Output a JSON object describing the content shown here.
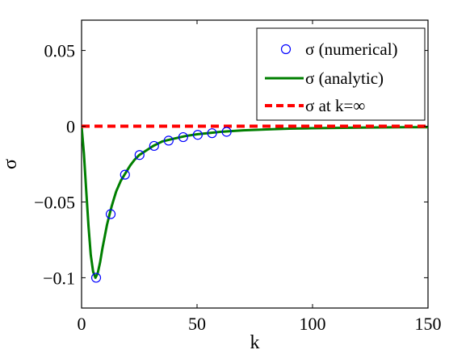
{
  "chart_data": {
    "type": "line",
    "title": "",
    "xlabel": "k",
    "ylabel": "σ",
    "xlim": [
      0,
      150
    ],
    "ylim": [
      -0.12,
      0.07
    ],
    "x_ticks": [
      0,
      50,
      100,
      150
    ],
    "x_tick_labels": [
      "0",
      "50",
      "100",
      "150"
    ],
    "y_ticks": [
      0.05,
      0,
      -0.05,
      -0.1
    ],
    "y_tick_labels": [
      "0.05",
      "0",
      "−0.05",
      "−0.1"
    ],
    "grid": false,
    "legend_position": "top-right",
    "series": [
      {
        "name": "σ (numerical)",
        "kind": "markers",
        "color": "#0000ff",
        "x": [
          6.3,
          12.6,
          18.8,
          25.1,
          31.4,
          37.7,
          44,
          50.3,
          56.5,
          62.8
        ],
        "y": [
          -0.1,
          -0.058,
          -0.032,
          -0.019,
          -0.013,
          -0.0095,
          -0.0072,
          -0.0057,
          -0.0046,
          -0.0037
        ]
      },
      {
        "name": "σ (analytic)",
        "kind": "line",
        "color": "#007f00",
        "x": [
          0,
          1,
          2,
          3,
          4,
          5,
          6,
          7,
          8,
          9,
          10,
          11,
          12,
          13,
          14,
          15,
          17,
          19,
          21,
          23,
          25,
          28,
          31,
          35,
          40,
          45,
          50,
          60,
          70,
          80,
          90,
          100,
          110,
          120,
          130,
          140,
          150
        ],
        "y": [
          0,
          -0.018,
          -0.042,
          -0.066,
          -0.085,
          -0.096,
          -0.1,
          -0.097,
          -0.09,
          -0.081,
          -0.073,
          -0.065,
          -0.059,
          -0.053,
          -0.048,
          -0.043,
          -0.036,
          -0.031,
          -0.026,
          -0.022,
          -0.019,
          -0.016,
          -0.013,
          -0.01,
          -0.0082,
          -0.0065,
          -0.0053,
          -0.0037,
          -0.0027,
          -0.0021,
          -0.0016,
          -0.0013,
          -0.0011,
          -0.0009,
          -0.0008,
          -0.0007,
          -0.0006
        ]
      },
      {
        "name": "σ at k=∞",
        "kind": "dashed-line",
        "color": "#ff0000",
        "x": [
          0,
          150
        ],
        "y": [
          0,
          0
        ]
      }
    ]
  }
}
